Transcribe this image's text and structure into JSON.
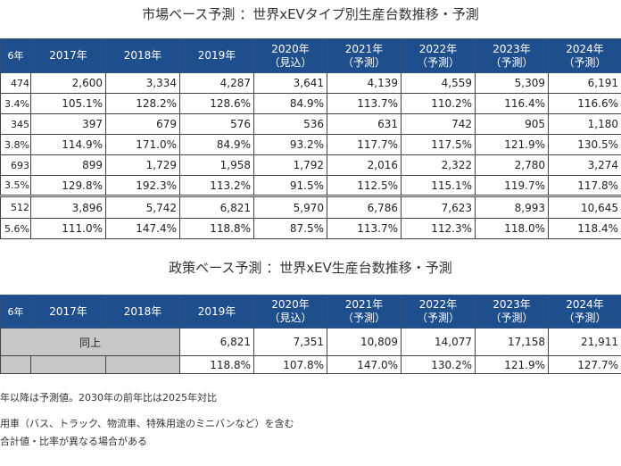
{
  "market": {
    "title": "市場ベース予測 ：世界xEVタイプ別生産台数推移・予測",
    "headers": [
      [
        "6年",
        ""
      ],
      [
        "2017年",
        ""
      ],
      [
        "2018年",
        ""
      ],
      [
        "2019年",
        ""
      ],
      [
        "2020年",
        "（見込）"
      ],
      [
        "2021年",
        "（予測）"
      ],
      [
        "2022年",
        "（予測）"
      ],
      [
        "2023年",
        "（予測）"
      ],
      [
        "2024年",
        "（予測）"
      ]
    ],
    "rows": [
      [
        "474",
        "2,600",
        "3,334",
        "4,287",
        "3,641",
        "4,139",
        "4,559",
        "5,309",
        "6,191"
      ],
      [
        "3.4%",
        "105.1%",
        "128.2%",
        "128.6%",
        "84.9%",
        "113.7%",
        "110.2%",
        "116.4%",
        "116.6%"
      ],
      [
        "345",
        "397",
        "679",
        "576",
        "536",
        "631",
        "742",
        "905",
        "1,180"
      ],
      [
        "3.8%",
        "114.9%",
        "171.0%",
        "84.9%",
        "93.2%",
        "117.7%",
        "117.5%",
        "121.9%",
        "130.5%"
      ],
      [
        "693",
        "899",
        "1,729",
        "1,958",
        "1,792",
        "2,016",
        "2,322",
        "2,780",
        "3,274"
      ],
      [
        "3.5%",
        "129.8%",
        "192.3%",
        "113.2%",
        "91.5%",
        "112.5%",
        "115.1%",
        "119.7%",
        "117.8%"
      ],
      [
        "512",
        "3,896",
        "5,742",
        "6,821",
        "5,970",
        "6,786",
        "7,623",
        "8,993",
        "10,645"
      ],
      [
        "5.6%",
        "111.0%",
        "147.4%",
        "118.8%",
        "87.5%",
        "113.7%",
        "112.3%",
        "118.0%",
        "118.4%"
      ]
    ]
  },
  "policy": {
    "title": "政策ベース予測 ：世界xEV生産台数推移・予測",
    "headers": [
      [
        "6年",
        ""
      ],
      [
        "2017年",
        ""
      ],
      [
        "2018年",
        ""
      ],
      [
        "2019年",
        ""
      ],
      [
        "2020年",
        "（見込）"
      ],
      [
        "2021年",
        "（予測）"
      ],
      [
        "2022年",
        "（予測）"
      ],
      [
        "2023年",
        "（予測）"
      ],
      [
        "2024年",
        "（予測）"
      ]
    ],
    "same_label": "同上",
    "row1": [
      "6,821",
      "7,351",
      "10,809",
      "14,077",
      "17,158",
      "21,911"
    ],
    "row2": [
      "118.8%",
      "107.8%",
      "147.0%",
      "130.2%",
      "121.9%",
      "127.7%"
    ]
  },
  "notes": [
    "年以降は予測値。2030年の前年比は2025年対比",
    "用車（バス、トラック、物流車、特殊用途のミニバンなど）を含む",
    "合計値・比率が異なる場合がある"
  ],
  "colors": {
    "header_bg": "#1f4e8c",
    "same_cell_bg": "#c8c8c8"
  }
}
